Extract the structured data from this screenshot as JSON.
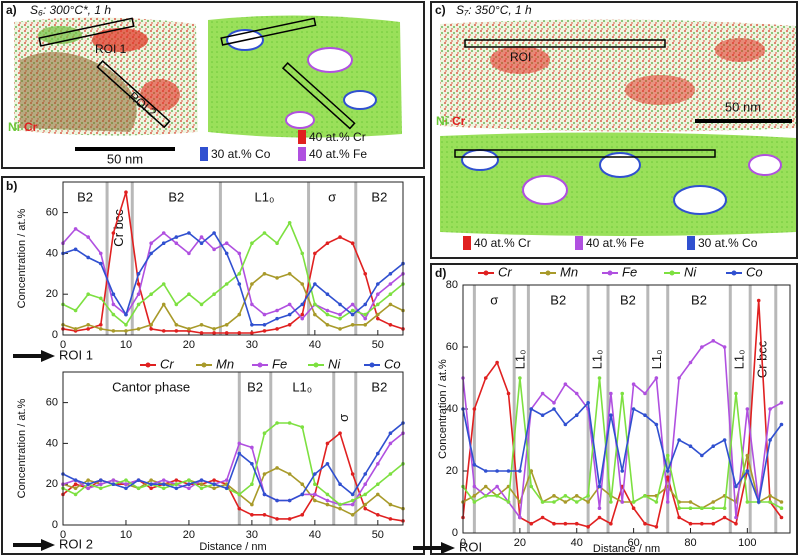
{
  "panels": {
    "a": {
      "label": "a)",
      "sample": "S₆: 300°C*, 1 h",
      "roi1": "ROI 1",
      "roi2": "ROI 2",
      "ni": "Ni",
      "cr": "Cr",
      "scale": "50 nm",
      "iso_co": "30 at.% Co",
      "iso_cr": "40 at.% Cr",
      "iso_fe": "40 at.% Fe"
    },
    "b": {
      "label": "b)"
    },
    "c": {
      "label": "c)",
      "sample": "S₇: 350°C, 1 h",
      "roi": "ROI",
      "scale": "50 nm",
      "ni": "Ni",
      "cr": "Cr",
      "iso_cr": "40 at.% Cr",
      "iso_fe": "40 at.% Fe",
      "iso_co": "30 at.% Co"
    },
    "d": {
      "label": "d)"
    }
  },
  "chart_data": [
    {
      "type": "line",
      "ylabel": "Concentration / at.%",
      "roi": "ROI 1",
      "x": [
        0,
        2,
        4,
        6,
        8,
        10,
        12,
        14,
        16,
        18,
        20,
        22,
        24,
        26,
        28,
        30,
        32,
        34,
        36,
        38,
        40,
        42,
        44,
        46,
        48,
        50,
        52,
        54
      ],
      "xlim": [
        0,
        54
      ],
      "xticks": [
        0,
        10,
        20,
        30,
        40,
        50
      ],
      "ylim": [
        0,
        75
      ],
      "yticks": [
        0,
        20,
        40,
        60
      ],
      "boundaries": [
        7,
        11,
        25,
        39,
        46.5
      ],
      "regions": [
        "B2",
        "Cr bcc",
        "B2",
        "L1₀",
        "σ",
        "B2"
      ],
      "series": [
        {
          "name": "Cr",
          "color": "#e02020",
          "values": [
            3,
            2,
            3,
            5,
            50,
            70,
            25,
            3,
            2,
            2,
            2,
            1,
            1,
            1,
            1,
            1,
            2,
            3,
            5,
            10,
            40,
            45,
            48,
            45,
            30,
            8,
            5,
            3
          ]
        },
        {
          "name": "Mn",
          "color": "#a89a2a",
          "values": [
            5,
            3,
            5,
            3,
            2,
            2,
            3,
            5,
            15,
            5,
            3,
            5,
            3,
            5,
            10,
            25,
            30,
            28,
            30,
            25,
            10,
            5,
            3,
            5,
            5,
            10,
            15,
            12
          ]
        },
        {
          "name": "Fe",
          "color": "#b050e0",
          "values": [
            45,
            52,
            48,
            40,
            15,
            10,
            20,
            45,
            50,
            45,
            40,
            48,
            42,
            45,
            40,
            15,
            10,
            12,
            15,
            8,
            15,
            12,
            10,
            15,
            8,
            20,
            25,
            30
          ]
        },
        {
          "name": "Ni",
          "color": "#7de040",
          "values": [
            15,
            12,
            20,
            18,
            10,
            5,
            15,
            20,
            25,
            15,
            20,
            15,
            20,
            25,
            30,
            45,
            50,
            45,
            55,
            40,
            15,
            10,
            8,
            12,
            10,
            15,
            20,
            25
          ]
        },
        {
          "name": "Co",
          "color": "#3050d0",
          "values": [
            40,
            42,
            38,
            35,
            20,
            10,
            30,
            40,
            45,
            48,
            50,
            45,
            50,
            40,
            25,
            5,
            5,
            8,
            10,
            15,
            25,
            20,
            15,
            10,
            15,
            25,
            30,
            35
          ]
        }
      ]
    },
    {
      "type": "line",
      "ylabel": "Concentration / at.%",
      "xlabel": "Distance / nm",
      "roi": "ROI 2",
      "x": [
        0,
        2,
        4,
        6,
        8,
        10,
        12,
        14,
        16,
        18,
        20,
        22,
        24,
        26,
        28,
        30,
        32,
        34,
        36,
        38,
        40,
        42,
        44,
        46,
        48,
        50,
        52,
        54
      ],
      "xlim": [
        0,
        54
      ],
      "xticks": [
        0,
        10,
        20,
        30,
        40,
        50
      ],
      "ylim": [
        0,
        75
      ],
      "yticks": [
        0,
        20,
        40,
        60
      ],
      "boundaries": [
        28,
        33,
        43,
        46.5
      ],
      "regions": [
        "Cantor phase",
        "B2",
        "L1₀",
        "σ",
        "B2"
      ],
      "series": [
        {
          "color": "#e02020",
          "values": [
            15,
            20,
            18,
            22,
            20,
            20,
            22,
            18,
            20,
            22,
            20,
            20,
            22,
            20,
            8,
            5,
            5,
            3,
            3,
            5,
            15,
            40,
            45,
            25,
            8,
            5,
            3,
            2
          ]
        },
        {
          "color": "#a89a2a",
          "values": [
            20,
            18,
            22,
            20,
            22,
            20,
            18,
            22,
            20,
            20,
            22,
            20,
            18,
            20,
            15,
            10,
            25,
            28,
            25,
            20,
            12,
            10,
            8,
            5,
            10,
            15,
            10,
            8
          ]
        },
        {
          "color": "#b050e0",
          "values": [
            20,
            22,
            18,
            20,
            22,
            20,
            22,
            20,
            22,
            20,
            18,
            22,
            20,
            22,
            40,
            38,
            15,
            12,
            12,
            15,
            15,
            12,
            10,
            10,
            20,
            30,
            40,
            45
          ]
        },
        {
          "color": "#7de040",
          "values": [
            18,
            15,
            20,
            18,
            20,
            22,
            18,
            20,
            18,
            20,
            22,
            18,
            20,
            18,
            15,
            20,
            45,
            50,
            50,
            48,
            20,
            15,
            10,
            12,
            15,
            20,
            25,
            30
          ]
        },
        {
          "color": "#3050d0",
          "values": [
            25,
            22,
            20,
            22,
            20,
            18,
            22,
            20,
            20,
            18,
            20,
            22,
            20,
            18,
            35,
            30,
            15,
            12,
            12,
            15,
            25,
            30,
            20,
            15,
            25,
            35,
            45,
            50
          ]
        }
      ]
    },
    {
      "type": "line",
      "ylabel": "Concentration / at.%",
      "xlabel": "Distance / nm",
      "roi": "ROI",
      "x": [
        0,
        4,
        8,
        12,
        16,
        20,
        24,
        28,
        32,
        36,
        40,
        44,
        48,
        52,
        56,
        60,
        64,
        68,
        72,
        76,
        80,
        84,
        88,
        92,
        96,
        100,
        104,
        108,
        112
      ],
      "xlim": [
        0,
        115
      ],
      "xticks": [
        0,
        20,
        40,
        60,
        80,
        100
      ],
      "ylim": [
        0,
        80
      ],
      "yticks": [
        0,
        20,
        40,
        60,
        80
      ],
      "boundaries": [
        4,
        18,
        23,
        44,
        51,
        65,
        72,
        94,
        101,
        110
      ],
      "regions": [
        null,
        "σ",
        "L1₀",
        "B2",
        "L1₀",
        "B2",
        "L1₀",
        "B2",
        "L1₀",
        "Cr bcc",
        null
      ],
      "series": [
        {
          "name": "Cr",
          "color": "#e02020",
          "values": [
            5,
            40,
            50,
            55,
            45,
            5,
            3,
            5,
            3,
            3,
            3,
            2,
            5,
            3,
            15,
            8,
            3,
            2,
            18,
            5,
            3,
            3,
            3,
            5,
            3,
            20,
            75,
            10,
            5
          ]
        },
        {
          "name": "Mn",
          "color": "#a89a2a",
          "values": [
            10,
            12,
            15,
            12,
            15,
            10,
            20,
            10,
            12,
            10,
            12,
            10,
            15,
            12,
            10,
            10,
            12,
            12,
            15,
            10,
            10,
            8,
            10,
            12,
            10,
            25,
            10,
            12,
            10
          ]
        },
        {
          "name": "Fe",
          "color": "#b050e0",
          "values": [
            50,
            15,
            12,
            15,
            10,
            5,
            40,
            45,
            42,
            48,
            45,
            40,
            8,
            45,
            10,
            48,
            45,
            50,
            10,
            50,
            55,
            60,
            62,
            60,
            5,
            40,
            10,
            40,
            42
          ]
        },
        {
          "name": "Ni",
          "color": "#7de040",
          "values": [
            15,
            10,
            12,
            12,
            10,
            50,
            15,
            10,
            10,
            12,
            10,
            12,
            50,
            10,
            45,
            10,
            12,
            10,
            25,
            8,
            8,
            8,
            8,
            8,
            45,
            10,
            10,
            10,
            8
          ]
        },
        {
          "name": "Co",
          "color": "#3050d0",
          "values": [
            40,
            22,
            20,
            20,
            20,
            20,
            40,
            38,
            40,
            35,
            38,
            42,
            15,
            38,
            20,
            40,
            38,
            35,
            20,
            30,
            28,
            25,
            28,
            30,
            15,
            20,
            10,
            30,
            35
          ]
        }
      ]
    }
  ]
}
